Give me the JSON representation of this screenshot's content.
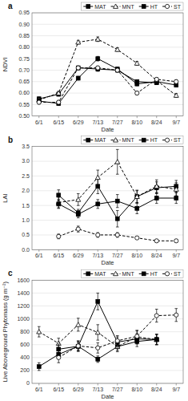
{
  "chart_data": [
    {
      "type": "line",
      "title": "a",
      "x_label": "Date",
      "y_label": "NDVI",
      "x": [
        0,
        14,
        28,
        42,
        56,
        70,
        84,
        98
      ],
      "xlim": [
        -5,
        103
      ],
      "xticks": [
        {
          "value": 0,
          "label": "6/1"
        },
        {
          "value": 14,
          "label": "6/15"
        },
        {
          "value": 28,
          "label": "6/29"
        },
        {
          "value": 42,
          "label": "7/13"
        },
        {
          "value": 56,
          "label": "7/27"
        },
        {
          "value": 70,
          "label": "8/10"
        },
        {
          "value": 84,
          "label": "8/24"
        },
        {
          "value": 98,
          "label": "9/7"
        }
      ],
      "ylim": [
        0.5,
        0.95
      ],
      "yticks": [
        {
          "value": 0.5,
          "label": "0.50"
        },
        0.55,
        {
          "value": 0.6,
          "label": "0.60"
        },
        0.65,
        {
          "value": 0.7,
          "label": "0.70"
        },
        0.75,
        {
          "value": 0.8,
          "label": "0.80"
        },
        0.85,
        {
          "value": 0.9,
          "label": "0.90"
        },
        0.95
      ],
      "grid": true,
      "legend": "upper right",
      "series": [
        {
          "name": "MAT",
          "color": "black",
          "marker": "square",
          "line_style": "solid",
          "values": [
            0.575,
            0.595,
            0.71,
            0.705,
            0.7,
            0.65,
            0.645,
            null
          ],
          "errors": [
            0.008,
            0.008,
            0.008,
            0.01,
            0.008,
            0.008,
            0.008,
            null
          ]
        },
        {
          "name": "MNT",
          "color": "black",
          "marker": "triangle-open",
          "line_style": "dashed",
          "values": [
            0.57,
            0.6,
            0.822,
            0.835,
            0.79,
            0.73,
            0.655,
            0.59
          ],
          "errors": [
            0.008,
            0.008,
            0.008,
            0.01,
            0.008,
            0.008,
            0.008,
            0.008
          ]
        },
        {
          "name": "HT",
          "color": "black",
          "marker": "square",
          "line_style": "solid",
          "values": [
            0.565,
            0.555,
            0.665,
            0.75,
            0.705,
            0.64,
            0.65,
            0.635
          ],
          "errors": [
            0.008,
            0.008,
            0.008,
            0.01,
            0.008,
            0.008,
            0.008,
            0.008
          ]
        },
        {
          "name": "ST",
          "color": "black",
          "marker": "circle-open",
          "line_style": "dashed",
          "values": [
            0.56,
            0.56,
            0.71,
            0.71,
            0.7,
            0.6,
            0.66,
            0.65
          ],
          "errors": [
            0.008,
            0.008,
            0.008,
            0.008,
            0.008,
            0.008,
            0.008,
            0.008
          ]
        }
      ]
    },
    {
      "type": "line",
      "title": "b",
      "x_label": "Date",
      "y_label": "LAI",
      "x": [
        0,
        14,
        28,
        42,
        56,
        70,
        84,
        98
      ],
      "xlim": [
        -5,
        103
      ],
      "xticks": [
        {
          "value": 0,
          "label": "6/1"
        },
        {
          "value": 14,
          "label": "6/15"
        },
        {
          "value": 28,
          "label": "6/29"
        },
        {
          "value": 42,
          "label": "7/13"
        },
        {
          "value": 56,
          "label": "7/27"
        },
        {
          "value": 70,
          "label": "8/10"
        },
        {
          "value": 84,
          "label": "8/24"
        },
        {
          "value": 98,
          "label": "9/7"
        }
      ],
      "ylim": [
        0.0,
        3.5
      ],
      "yticks": [
        {
          "value": 0,
          "label": "0.0"
        },
        0.5,
        {
          "value": 1,
          "label": "1.0"
        },
        1.5,
        {
          "value": 2,
          "label": "2.0"
        },
        2.5,
        {
          "value": 3,
          "label": "3.0"
        },
        3.5
      ],
      "grid": true,
      "legend": "upper right",
      "series": [
        {
          "name": "MAT",
          "color": "black",
          "marker": "square",
          "line_style": "solid",
          "values": [
            null,
            1.85,
            1.25,
            2.15,
            1.05,
            1.8,
            2.1,
            2.15
          ],
          "errors": [
            null,
            0.18,
            0.12,
            0.25,
            0.28,
            0.2,
            0.2,
            0.2
          ]
        },
        {
          "name": "MNT",
          "color": "black",
          "marker": "triangle-open",
          "line_style": "dashed",
          "values": [
            null,
            1.6,
            1.7,
            2.45,
            2.98,
            1.8,
            2.15,
            2.05
          ],
          "errors": [
            null,
            0.18,
            0.2,
            0.25,
            0.42,
            0.22,
            0.22,
            0.22
          ]
        },
        {
          "name": "HT",
          "color": "black",
          "marker": "square",
          "line_style": "solid",
          "values": [
            null,
            1.55,
            1.2,
            1.55,
            1.65,
            1.4,
            1.75,
            1.75
          ],
          "errors": [
            null,
            0.15,
            0.12,
            0.15,
            0.22,
            0.18,
            0.18,
            0.18
          ]
        },
        {
          "name": "ST",
          "color": "black",
          "marker": "circle-open",
          "line_style": "dashed",
          "values": [
            null,
            0.45,
            0.7,
            0.5,
            0.5,
            0.4,
            0.3,
            0.3
          ],
          "errors": [
            null,
            0.08,
            0.1,
            0.08,
            0.08,
            0.05,
            0.05,
            0.05
          ]
        }
      ]
    },
    {
      "type": "line",
      "title": "c",
      "x_label": "Date",
      "y_label": "Live Aboveground Phytomass (g m⁻²)",
      "x": [
        0,
        14,
        28,
        42,
        56,
        70,
        84,
        98
      ],
      "xlim": [
        -5,
        103
      ],
      "xticks": [
        {
          "value": 0,
          "label": "6/1"
        },
        {
          "value": 14,
          "label": "6/15"
        },
        {
          "value": 28,
          "label": "6/29"
        },
        {
          "value": 42,
          "label": "7/13"
        },
        {
          "value": 56,
          "label": "7/27"
        },
        {
          "value": 70,
          "label": "8/10"
        },
        {
          "value": 84,
          "label": "8/24"
        },
        {
          "value": 98,
          "label": "9/7"
        }
      ],
      "ylim": [
        0,
        1600
      ],
      "yticks": [
        0,
        200,
        400,
        600,
        800,
        1000,
        1200,
        1400,
        1600
      ],
      "grid": true,
      "legend": "upper right",
      "series": [
        {
          "name": "MAT",
          "color": "black",
          "marker": "square",
          "line_style": "solid",
          "values": [
            260,
            450,
            575,
            375,
            570,
            650,
            680,
            null
          ],
          "errors": [
            60,
            70,
            60,
            50,
            60,
            80,
            80,
            null
          ]
        },
        {
          "name": "MNT",
          "color": "black",
          "marker": "triangle-open",
          "line_style": "dashed",
          "values": [
            800,
            620,
            910,
            790,
            570,
            720,
            680,
            null
          ],
          "errors": [
            80,
            80,
            100,
            120,
            80,
            100,
            80,
            null
          ]
        },
        {
          "name": "HT",
          "color": "black",
          "marker": "square",
          "line_style": "solid",
          "values": [
            null,
            530,
            575,
            1270,
            640,
            690,
            680,
            null
          ],
          "errors": [
            null,
            80,
            80,
            130,
            80,
            80,
            80,
            null
          ]
        },
        {
          "name": "ST",
          "color": "black",
          "marker": "circle-open",
          "line_style": "dashed",
          "values": [
            null,
            400,
            580,
            550,
            660,
            730,
            1050,
            1060
          ],
          "errors": [
            null,
            80,
            80,
            80,
            80,
            90,
            100,
            100
          ]
        }
      ]
    }
  ]
}
